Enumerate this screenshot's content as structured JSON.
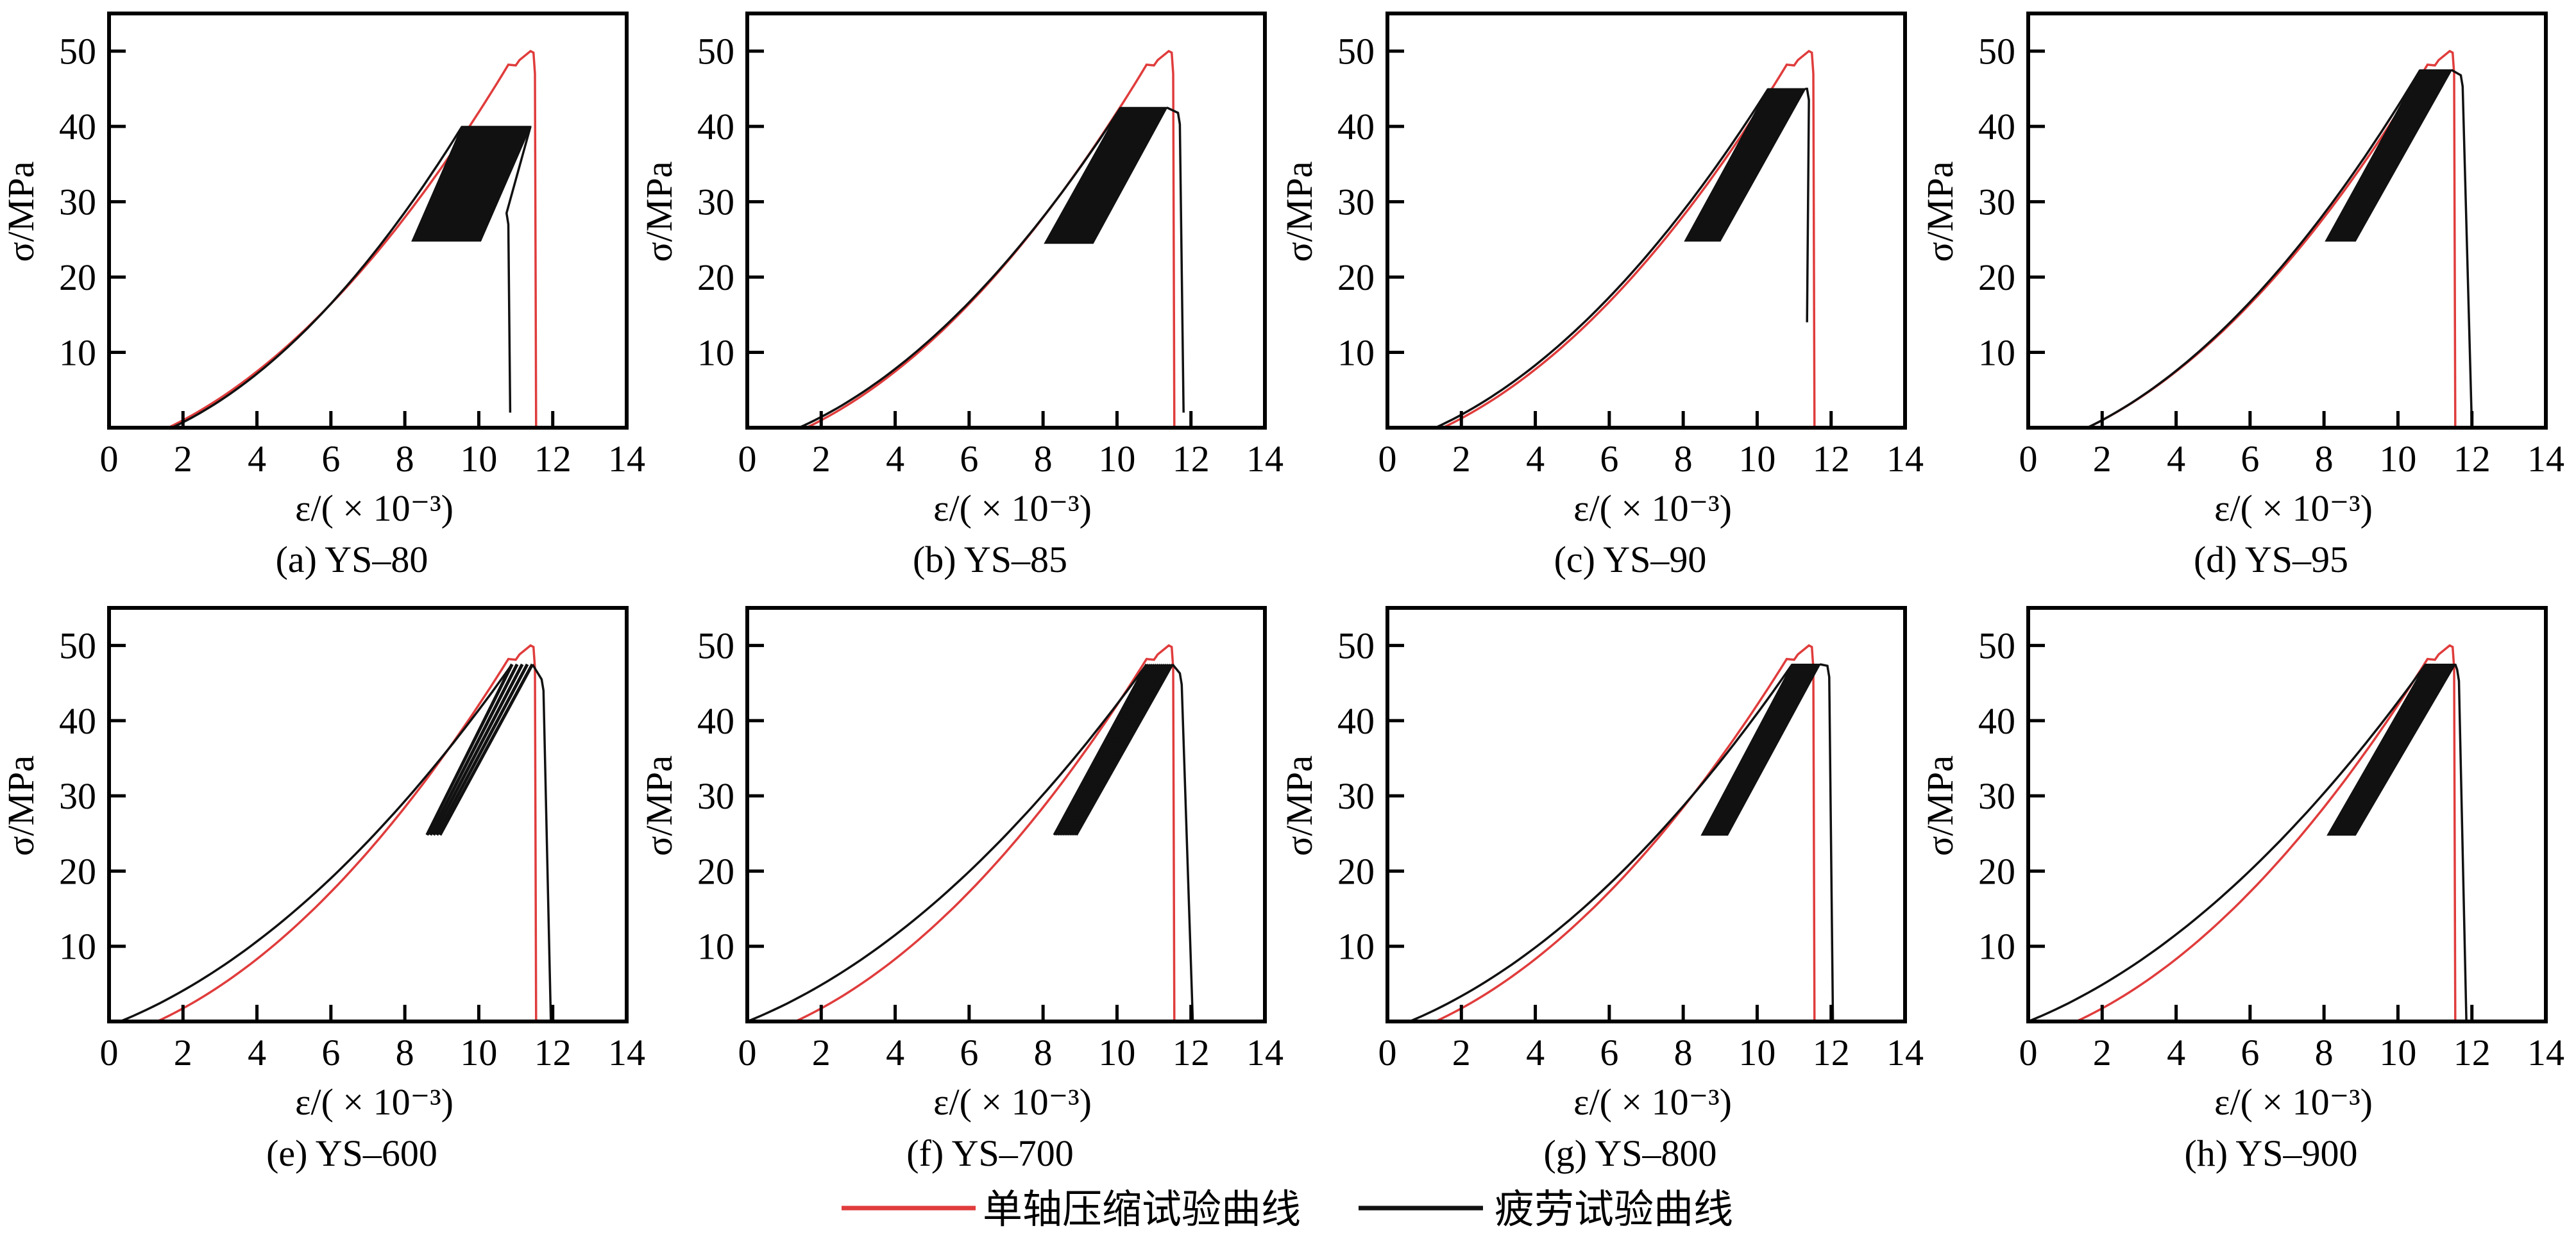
{
  "chart_data": {
    "type": "line",
    "legend": {
      "placement": "bottom-center",
      "entries": [
        {
          "name": "单轴压缩试验曲线",
          "color": "#e03c3c"
        },
        {
          "name": "疲劳试验曲线",
          "color": "#111111"
        }
      ]
    },
    "panels": [
      {
        "caption": "(a) YS–80",
        "xlabel": "ε/( × 10⁻³)",
        "ylabel": "σ/MPa",
        "xlim": [
          0,
          14
        ],
        "ylim": [
          0,
          55
        ],
        "xticks": [
          0,
          2,
          4,
          6,
          8,
          10,
          12,
          14
        ],
        "yticks": [
          10,
          20,
          30,
          40,
          50
        ],
        "uniaxial": {
          "start": 1.6,
          "peak_strain": 11.4,
          "peak_stress": 50,
          "fail_strain": 11.55
        },
        "fatigue": {
          "start": 1.7,
          "upper_stress": 40,
          "lower_stress": 24.8,
          "load_end_strain": 9.55,
          "band_upper_end": 11.4,
          "band_lower_start": 8.2,
          "band_lower_end": 10.05,
          "final_peak_strain": 10.75,
          "final_peak_stress": 28.5,
          "fail_strain": 10.85,
          "fail_stress": 2,
          "band": "solid"
        }
      },
      {
        "caption": "(b) YS–85",
        "xlabel": "ε/( × 10⁻³)",
        "ylabel": "σ/MPa",
        "xlim": [
          0,
          14
        ],
        "ylim": [
          0,
          55
        ],
        "xticks": [
          0,
          2,
          4,
          6,
          8,
          10,
          12,
          14
        ],
        "yticks": [
          10,
          20,
          30,
          40,
          50
        ],
        "uniaxial": {
          "start": 1.6,
          "peak_strain": 11.4,
          "peak_stress": 50,
          "fail_strain": 11.55
        },
        "fatigue": {
          "start": 1.4,
          "upper_stress": 42.5,
          "lower_stress": 24.5,
          "load_end_strain": 10.1,
          "band_upper_end": 11.35,
          "band_lower_start": 8.05,
          "band_lower_end": 9.35,
          "final_peak_strain": 11.65,
          "final_peak_stress": 41.8,
          "fail_strain": 11.8,
          "fail_stress": 2,
          "band": "solid"
        }
      },
      {
        "caption": "(c) YS–90",
        "xlabel": "ε/( × 10⁻³)",
        "ylabel": "σ/MPa",
        "xlim": [
          0,
          14
        ],
        "ylim": [
          0,
          55
        ],
        "xticks": [
          0,
          2,
          4,
          6,
          8,
          10,
          12,
          14
        ],
        "yticks": [
          10,
          20,
          30,
          40,
          50
        ],
        "uniaxial": {
          "start": 1.5,
          "peak_strain": 11.4,
          "peak_stress": 50,
          "fail_strain": 11.55
        },
        "fatigue": {
          "start": 1.3,
          "upper_stress": 45,
          "lower_stress": 24.8,
          "load_end_strain": 10.3,
          "band_upper_end": 11.3,
          "band_lower_start": 8.05,
          "band_lower_end": 9.0,
          "final_peak_strain": 11.35,
          "final_peak_stress": 45,
          "fail_strain": 11.35,
          "fail_stress": 14,
          "band": "solid"
        }
      },
      {
        "caption": "(d) YS–95",
        "xlabel": "ε/( × 10⁻³)",
        "ylabel": "σ/MPa",
        "xlim": [
          0,
          14
        ],
        "ylim": [
          0,
          55
        ],
        "xticks": [
          0,
          2,
          4,
          6,
          8,
          10,
          12,
          14
        ],
        "yticks": [
          10,
          20,
          30,
          40,
          50
        ],
        "uniaxial": {
          "start": 1.6,
          "peak_strain": 11.4,
          "peak_stress": 50,
          "fail_strain": 11.55
        },
        "fatigue": {
          "start": 1.6,
          "upper_stress": 47.5,
          "lower_stress": 24.8,
          "load_end_strain": 10.6,
          "band_upper_end": 11.45,
          "band_lower_start": 8.05,
          "band_lower_end": 8.85,
          "final_peak_strain": 11.7,
          "final_peak_stress": 46.8,
          "fail_strain": 12.0,
          "fail_stress": 0,
          "band": "solid"
        }
      },
      {
        "caption": "(e) YS–600",
        "xlabel": "ε/( × 10⁻³)",
        "ylabel": "σ/MPa",
        "xlim": [
          0,
          14
        ],
        "ylim": [
          0,
          55
        ],
        "xticks": [
          0,
          2,
          4,
          6,
          8,
          10,
          12,
          14
        ],
        "yticks": [
          10,
          20,
          30,
          40,
          50
        ],
        "uniaxial": {
          "start": 1.3,
          "peak_strain": 11.4,
          "peak_stress": 50,
          "fail_strain": 11.55
        },
        "fatigue": {
          "start": 0.3,
          "upper_stress": 47.5,
          "lower_stress": 24.8,
          "load_end_strain": 10.9,
          "band_upper_end": 11.45,
          "band_lower_start": 8.6,
          "band_lower_end": 8.95,
          "final_peak_strain": 11.7,
          "final_peak_stress": 45.5,
          "fail_strain": 11.95,
          "fail_stress": 0,
          "band": "lines"
        }
      },
      {
        "caption": "(f) YS–700",
        "xlabel": "ε/( × 10⁻³)",
        "ylabel": "σ/MPa",
        "xlim": [
          0,
          14
        ],
        "ylim": [
          0,
          55
        ],
        "xticks": [
          0,
          2,
          4,
          6,
          8,
          10,
          12,
          14
        ],
        "yticks": [
          10,
          20,
          30,
          40,
          50
        ],
        "uniaxial": {
          "start": 1.3,
          "peak_strain": 11.4,
          "peak_stress": 50,
          "fail_strain": 11.55
        },
        "fatigue": {
          "start": 0.0,
          "upper_stress": 47.5,
          "lower_stress": 24.8,
          "load_end_strain": 10.8,
          "band_upper_end": 11.5,
          "band_lower_start": 8.3,
          "band_lower_end": 8.9,
          "final_peak_strain": 11.7,
          "final_peak_stress": 46.3,
          "fail_strain": 12.05,
          "fail_stress": 0,
          "band": "dense-lines"
        }
      },
      {
        "caption": "(g) YS–800",
        "xlabel": "ε/( × 10⁻³)",
        "ylabel": "σ/MPa",
        "xlim": [
          0,
          14
        ],
        "ylim": [
          0,
          55
        ],
        "xticks": [
          0,
          2,
          4,
          6,
          8,
          10,
          12,
          14
        ],
        "yticks": [
          10,
          20,
          30,
          40,
          50
        ],
        "uniaxial": {
          "start": 1.3,
          "peak_strain": 11.4,
          "peak_stress": 50,
          "fail_strain": 11.55
        },
        "fatigue": {
          "start": 0.6,
          "upper_stress": 47.5,
          "lower_stress": 24.8,
          "load_end_strain": 10.95,
          "band_upper_end": 11.7,
          "band_lower_start": 8.5,
          "band_lower_end": 9.2,
          "final_peak_strain": 11.9,
          "final_peak_stress": 47.3,
          "fail_strain": 12.05,
          "fail_stress": 0,
          "band": "solid"
        }
      },
      {
        "caption": "(h) YS–900",
        "xlabel": "ε/( × 10⁻³)",
        "ylabel": "σ/MPa",
        "xlim": [
          0,
          14
        ],
        "ylim": [
          0,
          55
        ],
        "xticks": [
          0,
          2,
          4,
          6,
          8,
          10,
          12,
          14
        ],
        "yticks": [
          10,
          20,
          30,
          40,
          50
        ],
        "uniaxial": {
          "start": 1.3,
          "peak_strain": 11.4,
          "peak_stress": 50,
          "fail_strain": 11.55
        },
        "fatigue": {
          "start": 0.0,
          "upper_stress": 47.5,
          "lower_stress": 24.8,
          "load_end_strain": 10.75,
          "band_upper_end": 11.55,
          "band_lower_start": 8.1,
          "band_lower_end": 8.85,
          "final_peak_strain": 11.6,
          "final_peak_stress": 46.8,
          "fail_strain": 11.85,
          "fail_stress": 0,
          "band": "solid"
        }
      }
    ]
  }
}
